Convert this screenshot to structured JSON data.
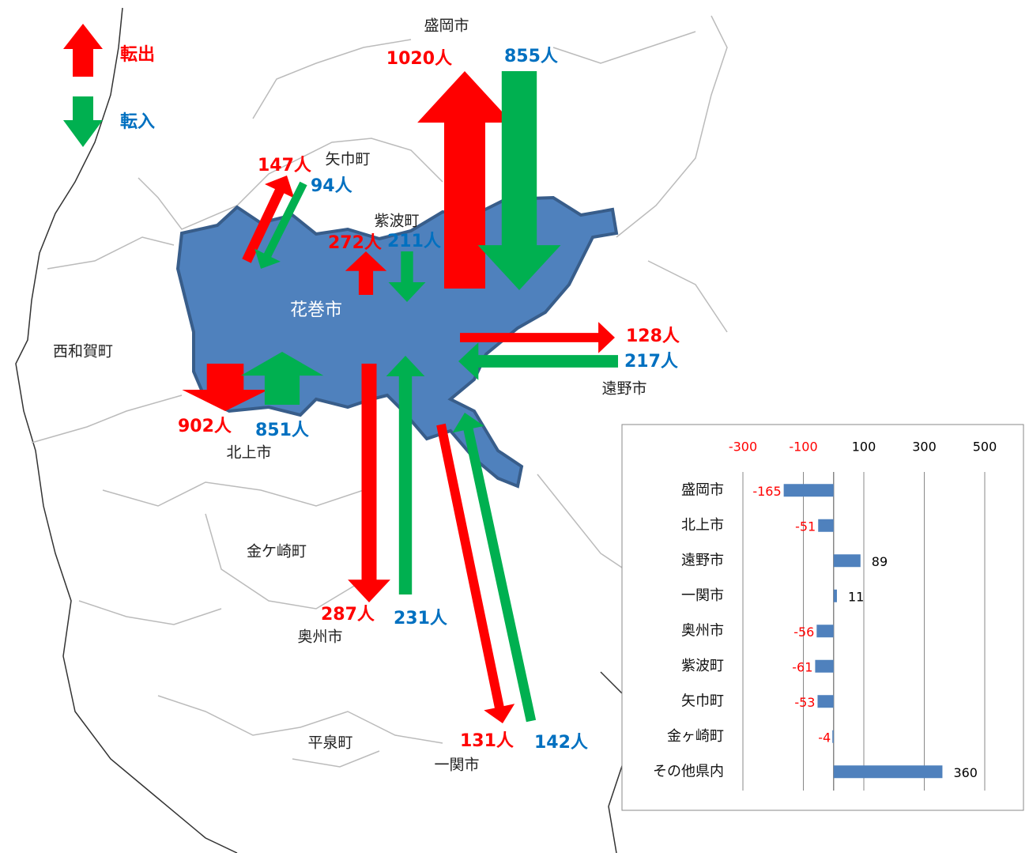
{
  "legend": {
    "out": "転出",
    "in": "転入"
  },
  "map": {
    "city": "花巻市",
    "places": [
      "盛岡市",
      "矢巾町",
      "紫波町",
      "遠野市",
      "北上市",
      "西和賀町",
      "金ケ崎町",
      "奥州市",
      "平泉町",
      "一関市"
    ],
    "flows": [
      {
        "out": {
          "value": 1020,
          "label": "1020人"
        },
        "in": {
          "value": 855,
          "label": "855人"
        }
      },
      {
        "out": {
          "value": 147,
          "label": "147人"
        },
        "in": {
          "value": 94,
          "label": "94人"
        }
      },
      {
        "out": {
          "value": 272,
          "label": "272人"
        },
        "in": {
          "value": 211,
          "label": "211人"
        }
      },
      {
        "out": {
          "value": 128,
          "label": "128人"
        },
        "in": {
          "value": 217,
          "label": "217人"
        }
      },
      {
        "out": {
          "value": 902,
          "label": "902人"
        },
        "in": {
          "value": 851,
          "label": "851人"
        }
      },
      {
        "out": {
          "value": 287,
          "label": "287人"
        },
        "in": {
          "value": 231,
          "label": "231人"
        }
      },
      {
        "out": {
          "value": 131,
          "label": "131人"
        },
        "in": {
          "value": 142,
          "label": "142人"
        }
      }
    ]
  },
  "chart_data": {
    "type": "bar",
    "orientation": "horizontal",
    "categories": [
      "盛岡市",
      "北上市",
      "遠野市",
      "一関市",
      "奥州市",
      "紫波町",
      "矢巾町",
      "金ヶ崎町",
      "その他県内"
    ],
    "values": [
      -165,
      -51,
      89,
      11,
      -56,
      -61,
      -53,
      -4,
      360
    ],
    "color": "#4f81bd",
    "negative_label_color": "#ff0000",
    "xlim": [
      -300,
      500
    ],
    "xticks": [
      -300,
      -100,
      100,
      300,
      500
    ],
    "grid": true
  }
}
